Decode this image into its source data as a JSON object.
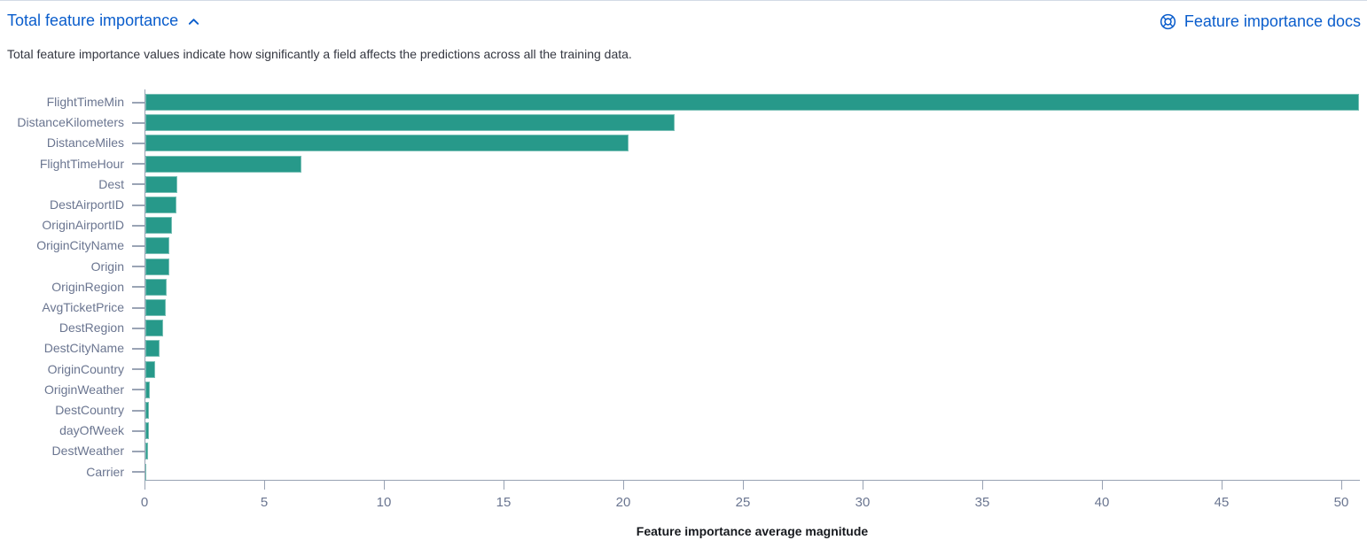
{
  "panel": {
    "title": "Total feature importance",
    "docs_link_label": "Feature importance docs",
    "description": "Total feature importance values indicate how significantly a field affects the predictions across all the training data.",
    "link_color": "#0a5dcc"
  },
  "chart_data": {
    "type": "bar",
    "orientation": "horizontal",
    "title": "",
    "categories": [
      "FlightTimeMin",
      "DistanceKilometers",
      "DistanceMiles",
      "FlightTimeHour",
      "Dest",
      "DestAirportID",
      "OriginAirportID",
      "OriginCityName",
      "Origin",
      "OriginRegion",
      "AvgTicketPrice",
      "DestRegion",
      "DestCityName",
      "OriginCountry",
      "OriginWeather",
      "DestCountry",
      "dayOfWeek",
      "DestWeather",
      "Carrier"
    ],
    "values": [
      50.7,
      22.1,
      20.2,
      6.5,
      1.35,
      1.3,
      1.1,
      1.0,
      1.0,
      0.9,
      0.85,
      0.75,
      0.6,
      0.4,
      0.2,
      0.15,
      0.15,
      0.1,
      0.05
    ],
    "xlabel": "Feature importance average magnitude",
    "ylabel": "",
    "x_ticks": [
      0,
      5,
      10,
      15,
      20,
      25,
      30,
      35,
      40,
      45,
      50
    ],
    "xlim": [
      0,
      51
    ],
    "grid": false,
    "legend": "none",
    "bar_color": "#27998a",
    "axis_color": "#98a2b3",
    "tick_label_color": "#6a7590",
    "axis_title_color": "#16191e"
  }
}
